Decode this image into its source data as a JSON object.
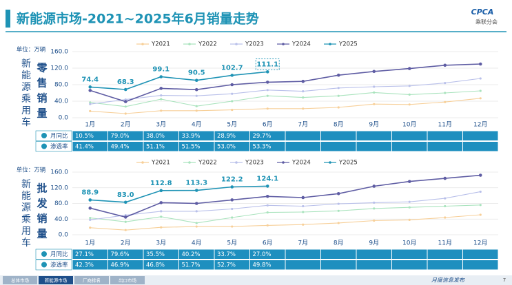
{
  "header": {
    "title": "新能源市场-2021~2025年6月销量走势",
    "logo": "CPCA",
    "logo_sub": "乘联分会"
  },
  "footer": {
    "tabs": [
      "总体市场",
      "新能源市场",
      "厂商排名",
      "出口市场"
    ],
    "note": "月度信息发布",
    "page": "7"
  },
  "chart_data": [
    {
      "type": "line",
      "unit": "单位：万辆",
      "y_group_label": "新能源乘用车",
      "y_label": "零售销量",
      "categories": [
        "1月",
        "2月",
        "3月",
        "4月",
        "5月",
        "6月",
        "7月",
        "8月",
        "9月",
        "10月",
        "11月",
        "12月"
      ],
      "ylim": [
        0,
        160
      ],
      "yticks": [
        {
          "value": 0,
          "label": "0.0"
        },
        {
          "value": 40,
          "label": "40.0"
        },
        {
          "value": 80,
          "label": "80.0"
        },
        {
          "value": 120,
          "label": "120.0"
        },
        {
          "value": 160,
          "label": "160.0"
        }
      ],
      "highlight": 5,
      "series": [
        {
          "name": "Y2021",
          "color": "#f7cf98",
          "values": [
            16,
            10,
            17,
            17,
            19,
            22,
            22,
            25,
            33,
            32,
            38,
            47
          ]
        },
        {
          "name": "Y2022",
          "color": "#a9e3bd",
          "values": [
            37,
            27,
            45,
            28,
            40,
            53,
            49,
            53,
            61,
            56,
            60,
            65
          ]
        },
        {
          "name": "Y2023",
          "color": "#b9c0ea",
          "values": [
            33,
            44,
            54,
            53,
            58,
            67,
            64,
            72,
            75,
            77,
            84,
            95
          ]
        },
        {
          "name": "Y2024",
          "color": "#5e5ca3",
          "values": [
            66,
            39,
            71,
            68,
            80,
            86,
            88,
            103,
            112,
            119,
            127,
            130
          ]
        },
        {
          "name": "Y2025",
          "color": "#1e93b5",
          "values": [
            74.4,
            68.3,
            99.1,
            90.5,
            102.7,
            111.1,
            null,
            null,
            null,
            null,
            null,
            null
          ]
        }
      ],
      "table": {
        "rows": [
          {
            "label": "月同比",
            "values": [
              "10.5%",
              "79.0%",
              "38.0%",
              "33.9%",
              "28.9%",
              "29.7%"
            ]
          },
          {
            "label": "渗透率",
            "values": [
              "41.4%",
              "49.4%",
              "51.1%",
              "51.5%",
              "53.0%",
              "53.3%"
            ]
          }
        ]
      }
    },
    {
      "type": "line",
      "unit": "单位：万辆",
      "y_group_label": "新能源乘用车",
      "y_label": "批发销量",
      "categories": [
        "1月",
        "2月",
        "3月",
        "4月",
        "5月",
        "6月",
        "7月",
        "8月",
        "9月",
        "10月",
        "11月",
        "12月"
      ],
      "ylim": [
        0,
        160
      ],
      "yticks": [
        {
          "value": 0,
          "label": "0.0"
        },
        {
          "value": 40,
          "label": "40.0"
        },
        {
          "value": 80,
          "label": "80.0"
        },
        {
          "value": 120,
          "label": "120.0"
        },
        {
          "value": 160,
          "label": "160.0"
        }
      ],
      "series": [
        {
          "name": "Y2021",
          "color": "#f7cf98",
          "values": [
            18,
            12,
            19,
            21,
            21,
            24,
            26,
            30,
            36,
            38,
            44,
            51
          ]
        },
        {
          "name": "Y2022",
          "color": "#a9e3bd",
          "values": [
            43,
            33,
            46,
            30,
            44,
            57,
            58,
            61,
            67,
            70,
            73,
            76
          ]
        },
        {
          "name": "Y2023",
          "color": "#b9c0ea",
          "values": [
            38,
            50,
            60,
            60,
            66,
            75,
            73,
            79,
            82,
            84,
            93,
            110
          ]
        },
        {
          "name": "Y2024",
          "color": "#5e5ca3",
          "values": [
            68,
            45,
            82,
            80,
            89,
            98,
            95,
            105,
            124,
            136,
            144,
            152
          ]
        },
        {
          "name": "Y2025",
          "color": "#1e93b5",
          "values": [
            88.9,
            83.0,
            112.8,
            113.3,
            122.2,
            124.1,
            null,
            null,
            null,
            null,
            null,
            null
          ],
          "value_labels": [
            "88.9",
            "83.0",
            "112.8",
            "113.3",
            "122.2",
            "124.1",
            null,
            null,
            null,
            null,
            null,
            null
          ]
        }
      ],
      "table": {
        "rows": [
          {
            "label": "月同比",
            "values": [
              "27.1%",
              "79.6%",
              "35.5%",
              "40.2%",
              "33.7%",
              "27.0%"
            ]
          },
          {
            "label": "渗透率",
            "values": [
              "42.3%",
              "46.9%",
              "46.8%",
              "51.7%",
              "52.7%",
              "49.8%"
            ]
          }
        ]
      }
    }
  ]
}
